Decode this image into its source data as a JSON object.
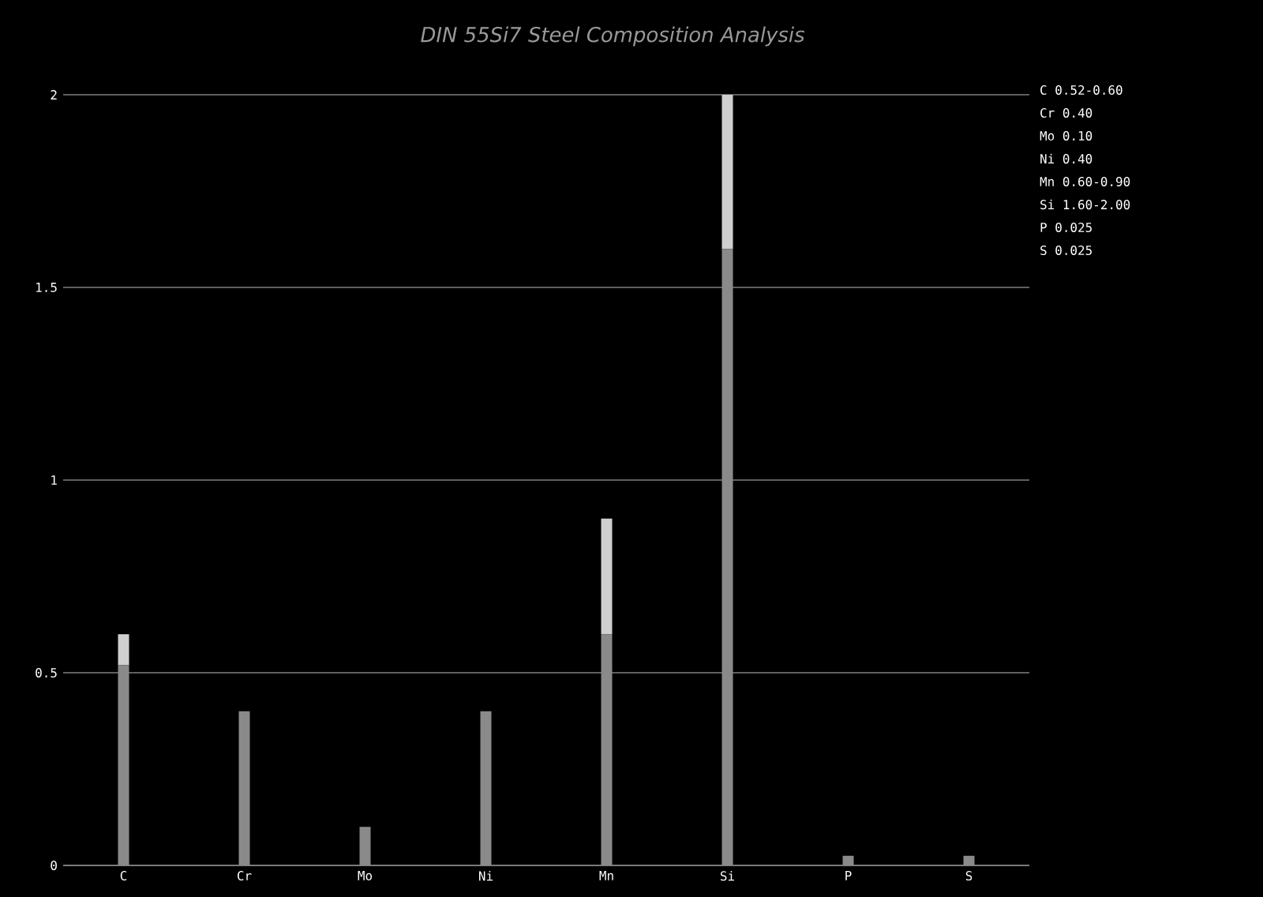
{
  "chart_data": {
    "type": "bar",
    "title": "DIN 55Si7 Steel Composition Analysis",
    "categories": [
      "C",
      "Cr",
      "Mo",
      "Ni",
      "Mn",
      "Si",
      "P",
      "S"
    ],
    "stacked": true,
    "series": [
      {
        "color": "#8a8a8a",
        "values": [
          0.52,
          0.4,
          0.1,
          0.4,
          0.6,
          1.6,
          0.025,
          0.025
        ]
      },
      {
        "color": "#cfcfcf",
        "values": [
          0.08,
          0,
          0,
          0,
          0.3,
          0.4,
          0,
          0
        ]
      }
    ],
    "ylim": [
      0,
      2
    ],
    "yticks": [
      0,
      0.5,
      1,
      1.5,
      2
    ],
    "grid": "y",
    "annotations": [
      "C  0.52-0.60",
      "Cr 0.40",
      "Mo 0.10",
      "Ni 0.40",
      "Mn 0.60-0.90",
      "Si 1.60-2.00",
      "P  0.025",
      "S  0.025"
    ]
  }
}
